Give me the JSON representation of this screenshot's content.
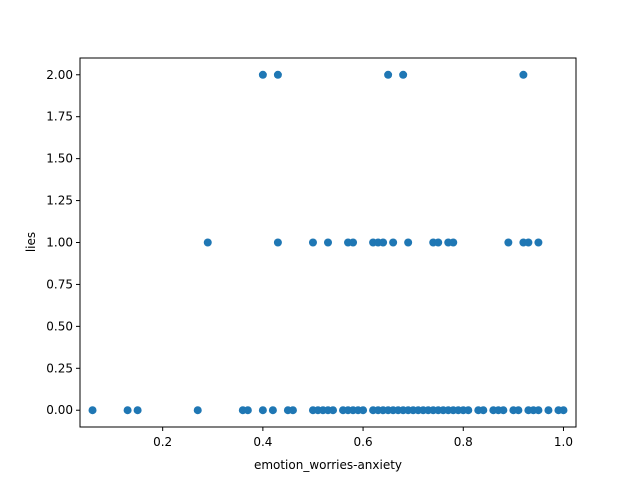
{
  "chart_data": {
    "type": "scatter",
    "title": "",
    "xlabel": "emotion_worries-anxiety",
    "ylabel": "lies",
    "xlim": [
      0.035,
      1.025
    ],
    "ylim": [
      -0.1,
      2.1
    ],
    "xticks": [
      0.2,
      0.4,
      0.6,
      0.8,
      1.0
    ],
    "xtick_labels": [
      "0.2",
      "0.4",
      "0.6",
      "0.8",
      "1.0"
    ],
    "yticks": [
      0.0,
      0.25,
      0.5,
      0.75,
      1.0,
      1.25,
      1.5,
      1.75,
      2.0
    ],
    "ytick_labels": [
      "0.00",
      "0.25",
      "0.50",
      "0.75",
      "1.00",
      "1.25",
      "1.50",
      "1.75",
      "2.00"
    ],
    "grid": false,
    "marker_color": "#1f77b4",
    "series": [
      {
        "points": [
          [
            0.4,
            2
          ],
          [
            0.43,
            2
          ],
          [
            0.65,
            2
          ],
          [
            0.68,
            2
          ],
          [
            0.92,
            2
          ],
          [
            0.29,
            1
          ],
          [
            0.43,
            1
          ],
          [
            0.5,
            1
          ],
          [
            0.53,
            1
          ],
          [
            0.57,
            1
          ],
          [
            0.58,
            1
          ],
          [
            0.62,
            1
          ],
          [
            0.63,
            1
          ],
          [
            0.64,
            1
          ],
          [
            0.66,
            1
          ],
          [
            0.69,
            1
          ],
          [
            0.74,
            1
          ],
          [
            0.75,
            1
          ],
          [
            0.77,
            1
          ],
          [
            0.78,
            1
          ],
          [
            0.89,
            1
          ],
          [
            0.92,
            1
          ],
          [
            0.93,
            1
          ],
          [
            0.95,
            1
          ],
          [
            0.06,
            0
          ],
          [
            0.13,
            0
          ],
          [
            0.15,
            0
          ],
          [
            0.27,
            0
          ],
          [
            0.36,
            0
          ],
          [
            0.37,
            0
          ],
          [
            0.4,
            0
          ],
          [
            0.42,
            0
          ],
          [
            0.45,
            0
          ],
          [
            0.46,
            0
          ],
          [
            0.5,
            0
          ],
          [
            0.51,
            0
          ],
          [
            0.52,
            0
          ],
          [
            0.53,
            0
          ],
          [
            0.54,
            0
          ],
          [
            0.56,
            0
          ],
          [
            0.57,
            0
          ],
          [
            0.58,
            0
          ],
          [
            0.59,
            0
          ],
          [
            0.6,
            0
          ],
          [
            0.62,
            0
          ],
          [
            0.63,
            0
          ],
          [
            0.64,
            0
          ],
          [
            0.65,
            0
          ],
          [
            0.66,
            0
          ],
          [
            0.67,
            0
          ],
          [
            0.68,
            0
          ],
          [
            0.69,
            0
          ],
          [
            0.7,
            0
          ],
          [
            0.71,
            0
          ],
          [
            0.72,
            0
          ],
          [
            0.73,
            0
          ],
          [
            0.74,
            0
          ],
          [
            0.75,
            0
          ],
          [
            0.76,
            0
          ],
          [
            0.77,
            0
          ],
          [
            0.78,
            0
          ],
          [
            0.79,
            0
          ],
          [
            0.8,
            0
          ],
          [
            0.81,
            0
          ],
          [
            0.83,
            0
          ],
          [
            0.84,
            0
          ],
          [
            0.86,
            0
          ],
          [
            0.87,
            0
          ],
          [
            0.88,
            0
          ],
          [
            0.9,
            0
          ],
          [
            0.91,
            0
          ],
          [
            0.93,
            0
          ],
          [
            0.94,
            0
          ],
          [
            0.95,
            0
          ],
          [
            0.97,
            0
          ],
          [
            0.99,
            0
          ],
          [
            1.0,
            0
          ]
        ]
      }
    ]
  }
}
